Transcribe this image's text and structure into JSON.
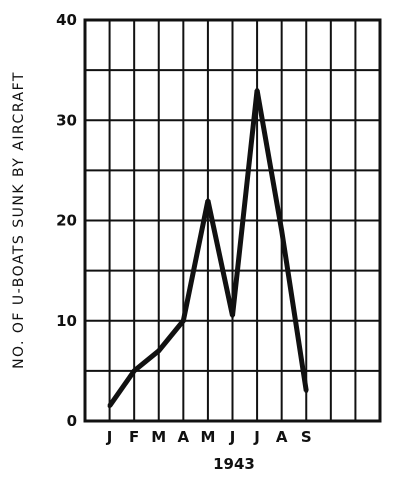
{
  "chart_data": {
    "type": "line",
    "title": "",
    "xlabel": "1943",
    "ylabel": "NO. OF U-BOATS SUNK BY AIRCRAFT",
    "categories": [
      "J",
      "F",
      "M",
      "A",
      "M",
      "J",
      "J",
      "A",
      "S"
    ],
    "x_ticks": [
      "J",
      "F",
      "M",
      "A",
      "M",
      "J",
      "J",
      "A",
      "S"
    ],
    "y_ticks": [
      "0",
      "10",
      "20",
      "30",
      "40"
    ],
    "ylim": [
      0,
      40
    ],
    "grid": true,
    "line_color": "#111111",
    "series": [
      {
        "values": [
          1.5,
          5,
          7,
          10,
          22,
          10.5,
          33,
          19,
          3
        ]
      }
    ]
  }
}
